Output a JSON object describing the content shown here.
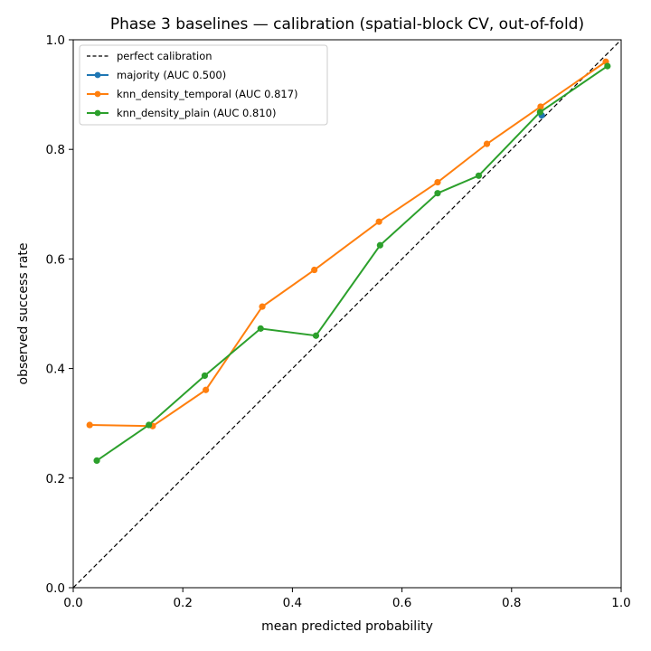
{
  "chart_data": {
    "type": "line",
    "title": "Phase 3 baselines — calibration (spatial-block CV, out-of-fold)",
    "xlabel": "mean predicted probability",
    "ylabel": "observed success rate",
    "xlim": [
      0.0,
      1.0
    ],
    "ylim": [
      0.0,
      1.0
    ],
    "xticks": [
      "0.0",
      "0.2",
      "0.4",
      "0.6",
      "0.8",
      "1.0"
    ],
    "yticks": [
      "0.0",
      "0.2",
      "0.4",
      "0.6",
      "0.8",
      "1.0"
    ],
    "grid": false,
    "legend_position": "top-left",
    "reference_line": {
      "name": "perfect calibration",
      "style": "dashed",
      "color": "#000000",
      "x": [
        0.0,
        1.0
      ],
      "y": [
        0.0,
        1.0
      ]
    },
    "series": [
      {
        "name": "majority (AUC 0.500)",
        "color": "#1f77b4",
        "x": [
          0.855
        ],
        "y": [
          0.862
        ]
      },
      {
        "name": "knn_density_temporal (AUC 0.817)",
        "color": "#ff7f0e",
        "x": [
          0.03,
          0.145,
          0.242,
          0.345,
          0.44,
          0.558,
          0.665,
          0.755,
          0.853,
          0.972
        ],
        "y": [
          0.297,
          0.295,
          0.361,
          0.513,
          0.58,
          0.668,
          0.74,
          0.81,
          0.878,
          0.96
        ]
      },
      {
        "name": "knn_density_plain (AUC 0.810)",
        "color": "#2ca02c",
        "x": [
          0.043,
          0.138,
          0.24,
          0.342,
          0.443,
          0.56,
          0.665,
          0.74,
          0.852,
          0.975
        ],
        "y": [
          0.232,
          0.297,
          0.387,
          0.473,
          0.46,
          0.625,
          0.72,
          0.752,
          0.868,
          0.952
        ]
      }
    ]
  }
}
